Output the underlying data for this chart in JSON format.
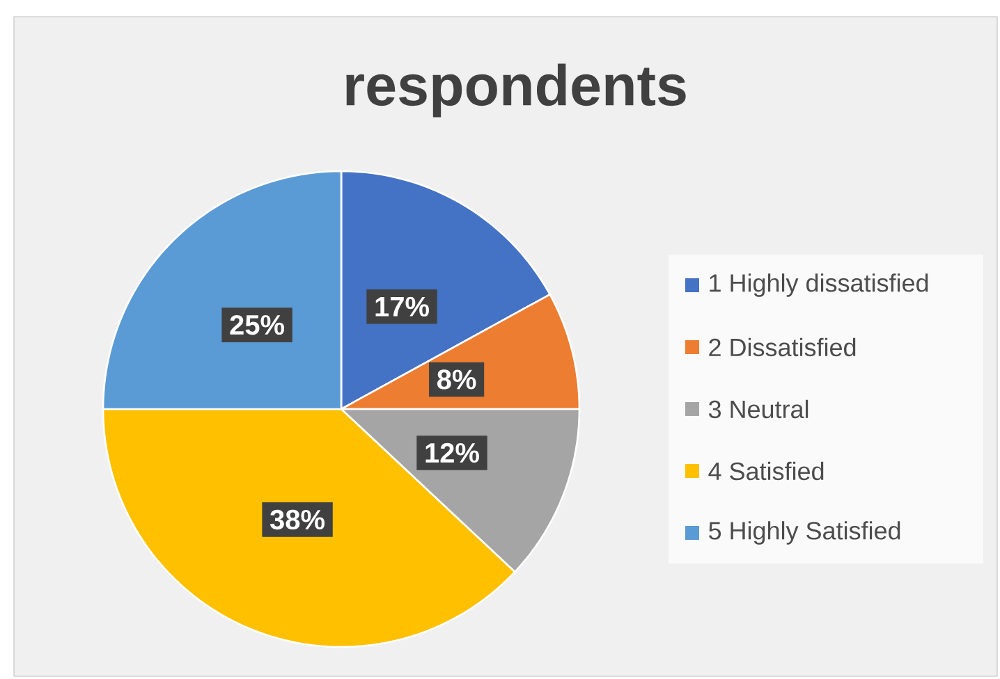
{
  "chart_data": {
    "type": "pie",
    "title": "respondents",
    "categories": [
      "1 Highly dissatisfied",
      "2 Dissatisfied",
      "3 Neutral",
      "4 Satisfied",
      "5 Highly Satisfied"
    ],
    "values": [
      17,
      8,
      12,
      38,
      25
    ],
    "value_labels": [
      "17%",
      "8%",
      "12%",
      "38%",
      "25%"
    ],
    "colors": [
      "#4472c4",
      "#ed7d31",
      "#a5a5a5",
      "#ffc000",
      "#5b9bd5"
    ],
    "legend": "right"
  }
}
